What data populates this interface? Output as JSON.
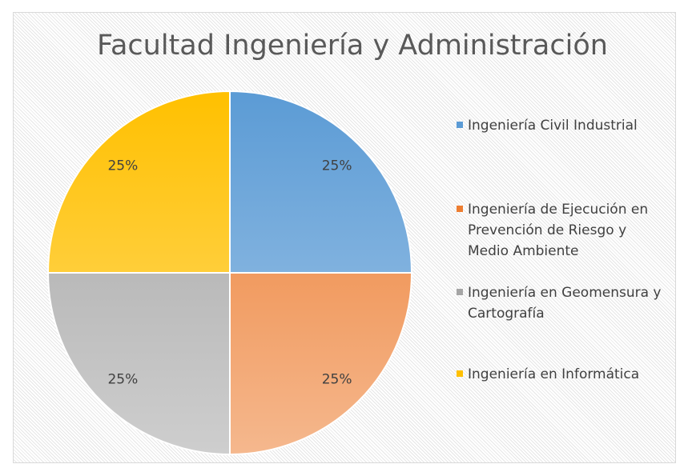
{
  "chart_data": {
    "type": "pie",
    "title": "Facultad Ingeniería y Administración",
    "categories": [
      "Ingeniería Civil Industrial",
      "Ingeniería de Ejecución en Prevención de Riesgo y Medio Ambiente",
      "Ingeniería en Geomensura y Cartografía",
      "Ingeniería en Informática"
    ],
    "values": [
      25,
      25,
      25,
      25
    ],
    "value_labels": [
      "25%",
      "25%",
      "25%",
      "25%"
    ],
    "colors": [
      "#5b9bd5",
      "#ed7d31",
      "#a5a5a5",
      "#ffc000"
    ],
    "legend": "right"
  }
}
